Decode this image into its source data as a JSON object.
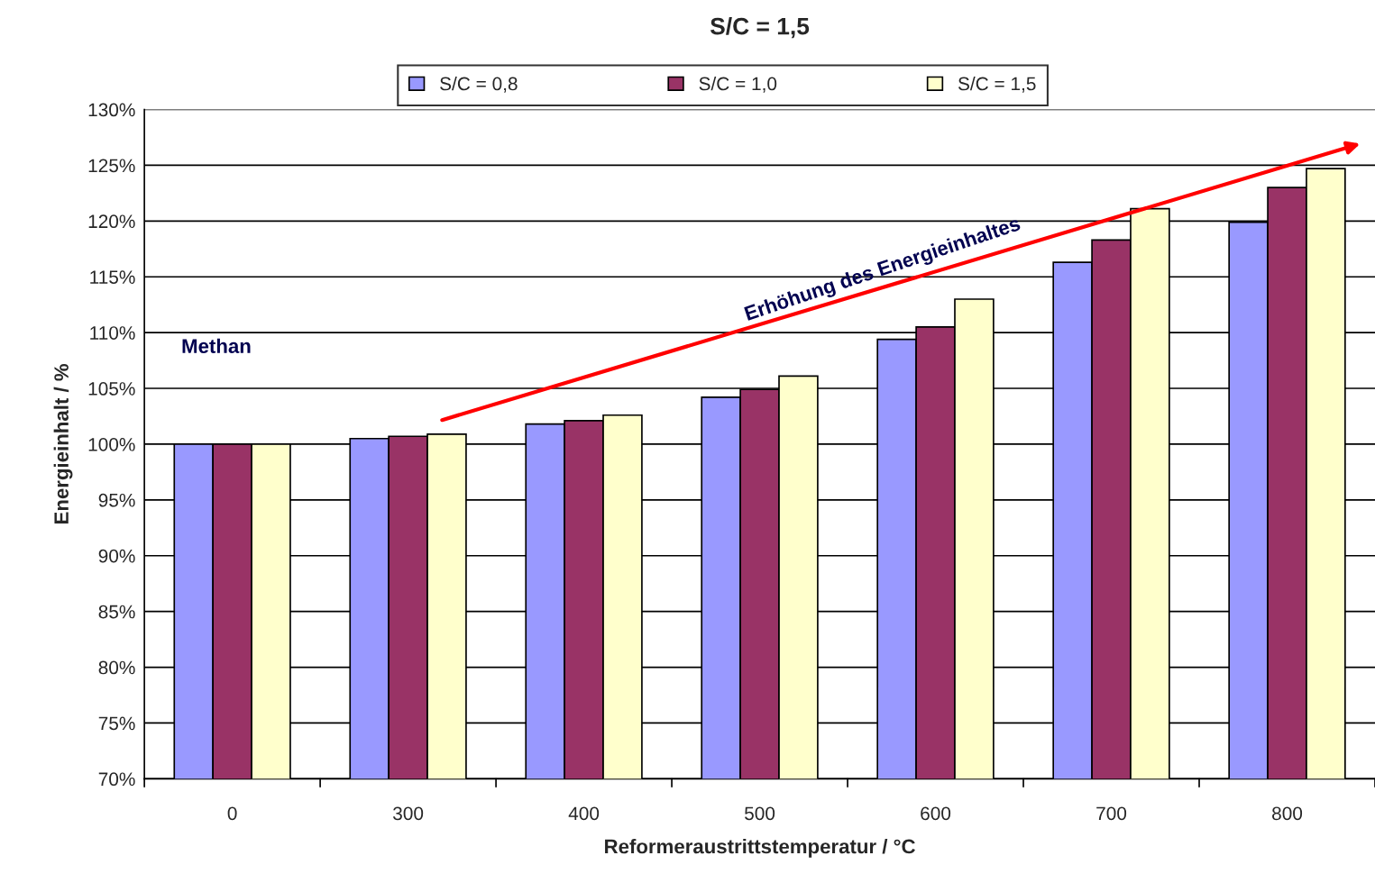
{
  "chart_data": {
    "type": "bar",
    "title": "S/C = 1,5",
    "xlabel": "Reformeraustrittstemperatur / °C",
    "ylabel": "Energieinhalt / %",
    "categories": [
      "0",
      "300",
      "400",
      "500",
      "600",
      "700",
      "800"
    ],
    "series": [
      {
        "name": "S/C = 0,8",
        "color": "#9999ff",
        "values": [
          100,
          100.5,
          101.8,
          104.2,
          109.4,
          116.3,
          119.9
        ]
      },
      {
        "name": "S/C = 1,0",
        "color": "#993366",
        "values": [
          100,
          100.7,
          102.1,
          104.9,
          110.5,
          118.3,
          123.0
        ]
      },
      {
        "name": "S/C = 1,5",
        "color": "#ffffcc",
        "values": [
          100,
          100.9,
          102.6,
          106.1,
          113.0,
          121.1,
          124.7
        ]
      }
    ],
    "ylim": [
      70,
      130
    ],
    "yticks": [
      {
        "value": 70,
        "label": "70%"
      },
      {
        "value": 75,
        "label": "75%"
      },
      {
        "value": 80,
        "label": "80%"
      },
      {
        "value": 85,
        "label": "85%"
      },
      {
        "value": 90,
        "label": "90%"
      },
      {
        "value": 95,
        "label": "95%"
      },
      {
        "value": 100,
        "label": "100%"
      },
      {
        "value": 105,
        "label": "105%"
      },
      {
        "value": 110,
        "label": "110%"
      },
      {
        "value": 115,
        "label": "115%"
      },
      {
        "value": 120,
        "label": "120%"
      },
      {
        "value": 125,
        "label": "125%"
      },
      {
        "value": 130,
        "label": "130%"
      }
    ],
    "grid": "y",
    "legend": "top",
    "annotations": [
      "Methan",
      "Erhöhung des Energieinhaltes"
    ]
  }
}
